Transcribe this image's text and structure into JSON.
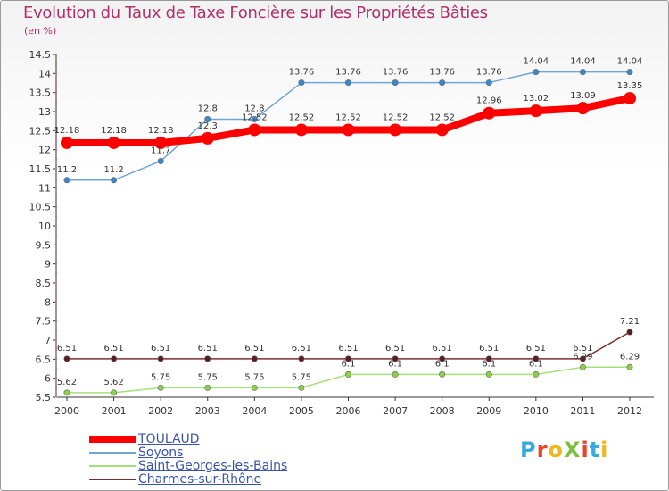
{
  "title": "Evolution du Taux de Taxe Foncière sur les Propriétés Bâties",
  "subtitle": "(en %)",
  "logo": {
    "text": "ProXiti",
    "colors": [
      "#3aa8e0",
      "#e8452c",
      "#f0b81c",
      "#7bbf3e",
      "#e8452c",
      "#3aa8e0",
      "#f0b81c"
    ]
  },
  "chart_data": {
    "type": "line",
    "title": "Evolution du Taux de Taxe Foncière sur les Propriétés Bâties",
    "ylabel": "(en %)",
    "xlabel": "",
    "categories": [
      "2000",
      "2001",
      "2002",
      "2003",
      "2004",
      "2005",
      "2006",
      "2007",
      "2008",
      "2009",
      "2010",
      "2011",
      "2012"
    ],
    "ylim": [
      5.5,
      14.5
    ],
    "yticks": [
      "5.5",
      "6",
      "6.5",
      "7",
      "7.5",
      "8",
      "8.5",
      "9",
      "9.5",
      "10",
      "10.5",
      "11",
      "11.5",
      "12",
      "12.5",
      "13",
      "13.5",
      "14",
      "14.5"
    ],
    "grid": false,
    "legend_position": "bottom-left",
    "series": [
      {
        "name": "TOULAUD",
        "color": "#ff0000",
        "width": 8,
        "values": [
          12.18,
          12.18,
          12.18,
          12.3,
          12.52,
          12.52,
          12.52,
          12.52,
          12.52,
          12.96,
          13.02,
          13.09,
          13.35
        ],
        "labels": [
          "12.18",
          "12.18",
          "12.18",
          "12.3",
          "12.52",
          "12.52",
          "12.52",
          "12.52",
          "12.52",
          "12.96",
          "13.02",
          "13.09",
          "13.35"
        ]
      },
      {
        "name": "Soyons",
        "color": "#6fa6d6",
        "width": 1.5,
        "values": [
          11.2,
          11.2,
          11.7,
          12.8,
          12.8,
          13.76,
          13.76,
          13.76,
          13.76,
          13.76,
          14.04,
          14.04,
          14.04
        ],
        "labels": [
          "11.2",
          "11.2",
          "11.7",
          "12.8",
          "12.8",
          "13.76",
          "13.76",
          "13.76",
          "13.76",
          "13.76",
          "14.04",
          "14.04",
          "14.04"
        ]
      },
      {
        "name": "Saint-Georges-les-Bains",
        "color": "#a6e07a",
        "width": 1.5,
        "values": [
          5.62,
          5.62,
          5.75,
          5.75,
          5.75,
          5.75,
          6.1,
          6.1,
          6.1,
          6.1,
          6.1,
          6.29,
          6.29
        ],
        "labels": [
          "5.62",
          "5.62",
          "5.75",
          "5.75",
          "5.75",
          "5.75",
          "6.1",
          "6.1",
          "6.1",
          "6.1",
          "6.1",
          "6.29",
          "6.29"
        ]
      },
      {
        "name": "Charmes-sur-Rhône",
        "color": "#7a2e2e",
        "width": 1.5,
        "values": [
          6.51,
          6.51,
          6.51,
          6.51,
          6.51,
          6.51,
          6.51,
          6.51,
          6.51,
          6.51,
          6.51,
          6.51,
          7.21
        ],
        "labels": [
          "6.51",
          "6.51",
          "6.51",
          "6.51",
          "6.51",
          "6.51",
          "6.51",
          "6.51",
          "6.51",
          "6.51",
          "6.51",
          "6.51",
          "7.21"
        ]
      }
    ]
  }
}
